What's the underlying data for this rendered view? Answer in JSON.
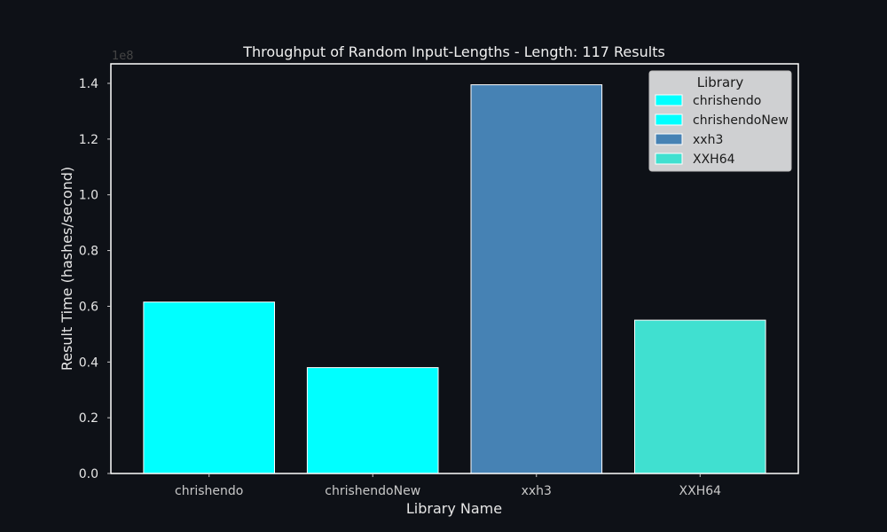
{
  "chart_data": {
    "type": "bar",
    "title": "Throughput of Random Input-Lengths - Length: 117 Results",
    "xlabel": "Library Name",
    "ylabel": "Result Time (hashes/second)",
    "y_scale_label": "1e8",
    "categories": [
      "chrishendo",
      "chrishendoNew",
      "xxh3",
      "XXH64"
    ],
    "values": [
      61500000,
      38000000,
      139500000,
      55000000
    ],
    "colors": [
      "#00ffff",
      "#00ffff",
      "#4682b4",
      "#40e0d0"
    ],
    "ylim": [
      0,
      147000000
    ],
    "yticks": [
      0,
      20000000,
      40000000,
      60000000,
      80000000,
      100000000,
      120000000,
      140000000
    ],
    "ytick_labels": [
      "0.0",
      "0.2",
      "0.4",
      "0.6",
      "0.8",
      "1.0",
      "1.2",
      "1.4"
    ],
    "grid": false,
    "legend": {
      "title": "Library",
      "placement": "top-right",
      "entries": [
        {
          "label": "chrishendo",
          "color": "#00ffff"
        },
        {
          "label": "chrishendoNew",
          "color": "#00ffff"
        },
        {
          "label": "xxh3",
          "color": "#4682b4"
        },
        {
          "label": "XXH64",
          "color": "#40e0d0"
        }
      ]
    }
  }
}
